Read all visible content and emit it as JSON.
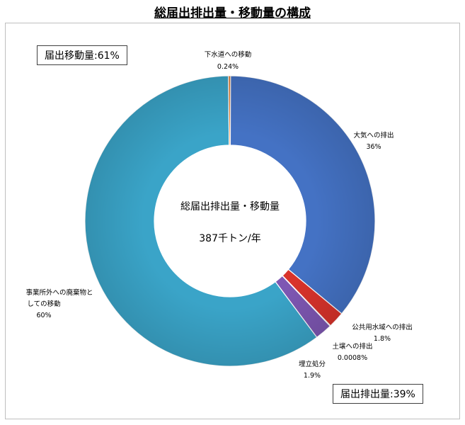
{
  "title": "総届出排出量・移動量の構成",
  "boxes": {
    "transfer": "届出移動量:61%",
    "emission": "届出排出量:39%"
  },
  "center": {
    "line1": "総届出排出量・移動量",
    "line2": "387千トン/年"
  },
  "chart_data": {
    "type": "pie",
    "donut": true,
    "start": "12 o'clock",
    "direction": "clockwise",
    "slices": [
      {
        "name": "大気への排出",
        "value": 36,
        "label": "36%",
        "color": "#4472c4"
      },
      {
        "name": "公共用水域への排出",
        "value": 1.8,
        "label": "1.8%",
        "color": "#d9332b"
      },
      {
        "name": "土壌への排出",
        "value": 0.0008,
        "label": "0.0008%",
        "color": "#6aa84f"
      },
      {
        "name": "埋立処分",
        "value": 1.9,
        "label": "1.9%",
        "color": "#7e57b3"
      },
      {
        "name": "事業所外への廃棄物としての移動",
        "value": 60,
        "label": "60%",
        "color": "#3aa4c8"
      },
      {
        "name": "下水道への移動",
        "value": 0.24,
        "label": "0.24%",
        "color": "#e07a2e"
      }
    ]
  }
}
